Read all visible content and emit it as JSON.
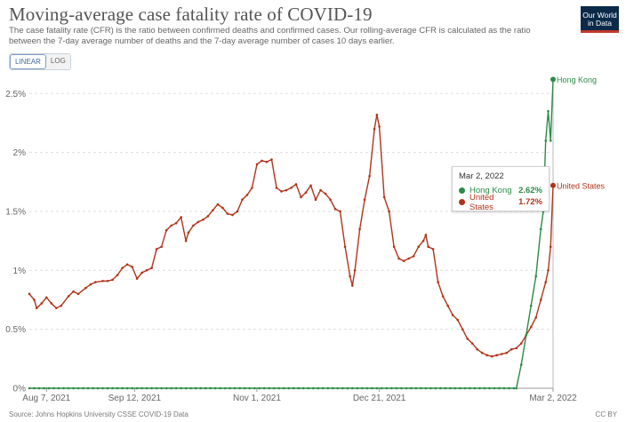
{
  "header": {
    "title": "Moving-average case fatality rate of COVID-19",
    "subtitle": "The case fatality rate (CFR) is the ratio between confirmed deaths and confirmed cases. Our rolling-average CFR is calculated as the ratio between the 7-day average number of deaths and the 7-day average number of cases 10 days earlier.",
    "logo_line1": "Our World",
    "logo_line2": "in Data"
  },
  "controls": {
    "linear_label": "LINEAR",
    "log_label": "LOG",
    "selected": "linear"
  },
  "footer": {
    "source": "Source: Johns Hopkins University CSSE COVID-19 Data",
    "license": "CC BY"
  },
  "tooltip": {
    "date": "Mar 2, 2022",
    "rows": [
      {
        "name": "Hong Kong",
        "value": "2.62%",
        "color": "#2c8b47"
      },
      {
        "name": "United States",
        "value": "1.72%",
        "color": "#b0341a"
      }
    ]
  },
  "chart_data": {
    "type": "line",
    "title": "Moving-average case fatality rate of COVID-19",
    "x_start": "2021-07-31",
    "x_end": "2022-03-02",
    "x_ticks": [
      {
        "date": "2021-08-07",
        "label": "Aug 7, 2021"
      },
      {
        "date": "2021-09-12",
        "label": "Sep 12, 2021"
      },
      {
        "date": "2021-11-01",
        "label": "Nov 1, 2021"
      },
      {
        "date": "2021-12-21",
        "label": "Dec 21, 2021"
      },
      {
        "date": "2022-03-02",
        "label": "Mar 2, 2022"
      }
    ],
    "y_ticks": [
      {
        "value": 0,
        "label": "0%"
      },
      {
        "value": 0.5,
        "label": "0.5%"
      },
      {
        "value": 1,
        "label": "1%"
      },
      {
        "value": 1.5,
        "label": "1.5%"
      },
      {
        "value": 2,
        "label": "2%"
      },
      {
        "value": 2.5,
        "label": "2.5%"
      }
    ],
    "ylim": [
      0,
      2.6
    ],
    "y_unit": "%",
    "grid": true,
    "series": [
      {
        "name": "United States",
        "color": "#b0341a",
        "label_value": "United States",
        "points": [
          [
            "2021-07-31",
            0.8
          ],
          [
            "2021-08-02",
            0.75
          ],
          [
            "2021-08-03",
            0.68
          ],
          [
            "2021-08-05",
            0.72
          ],
          [
            "2021-08-07",
            0.77
          ],
          [
            "2021-08-09",
            0.72
          ],
          [
            "2021-08-11",
            0.68
          ],
          [
            "2021-08-13",
            0.7
          ],
          [
            "2021-08-16",
            0.78
          ],
          [
            "2021-08-18",
            0.82
          ],
          [
            "2021-08-20",
            0.8
          ],
          [
            "2021-08-23",
            0.85
          ],
          [
            "2021-08-25",
            0.88
          ],
          [
            "2021-08-27",
            0.9
          ],
          [
            "2021-08-30",
            0.91
          ],
          [
            "2021-09-01",
            0.91
          ],
          [
            "2021-09-03",
            0.92
          ],
          [
            "2021-09-05",
            0.96
          ],
          [
            "2021-09-07",
            1.02
          ],
          [
            "2021-09-09",
            1.05
          ],
          [
            "2021-09-11",
            1.03
          ],
          [
            "2021-09-13",
            0.93
          ],
          [
            "2021-09-15",
            0.98
          ],
          [
            "2021-09-17",
            1.0
          ],
          [
            "2021-09-19",
            1.02
          ],
          [
            "2021-09-21",
            1.18
          ],
          [
            "2021-09-23",
            1.2
          ],
          [
            "2021-09-25",
            1.34
          ],
          [
            "2021-09-27",
            1.38
          ],
          [
            "2021-09-29",
            1.4
          ],
          [
            "2021-10-01",
            1.45
          ],
          [
            "2021-10-03",
            1.25
          ],
          [
            "2021-10-04",
            1.32
          ],
          [
            "2021-10-06",
            1.38
          ],
          [
            "2021-10-08",
            1.41
          ],
          [
            "2021-10-10",
            1.43
          ],
          [
            "2021-10-12",
            1.46
          ],
          [
            "2021-10-14",
            1.51
          ],
          [
            "2021-10-16",
            1.56
          ],
          [
            "2021-10-18",
            1.53
          ],
          [
            "2021-10-20",
            1.48
          ],
          [
            "2021-10-22",
            1.47
          ],
          [
            "2021-10-24",
            1.5
          ],
          [
            "2021-10-26",
            1.6
          ],
          [
            "2021-10-28",
            1.64
          ],
          [
            "2021-10-30",
            1.7
          ],
          [
            "2021-11-01",
            1.9
          ],
          [
            "2021-11-03",
            1.93
          ],
          [
            "2021-11-05",
            1.92
          ],
          [
            "2021-11-07",
            1.94
          ],
          [
            "2021-11-09",
            1.7
          ],
          [
            "2021-11-11",
            1.67
          ],
          [
            "2021-11-13",
            1.68
          ],
          [
            "2021-11-15",
            1.7
          ],
          [
            "2021-11-17",
            1.73
          ],
          [
            "2021-11-19",
            1.62
          ],
          [
            "2021-11-21",
            1.66
          ],
          [
            "2021-11-23",
            1.72
          ],
          [
            "2021-11-25",
            1.6
          ],
          [
            "2021-11-27",
            1.68
          ],
          [
            "2021-11-29",
            1.65
          ],
          [
            "2021-12-01",
            1.6
          ],
          [
            "2021-12-03",
            1.52
          ],
          [
            "2021-12-05",
            1.5
          ],
          [
            "2021-12-07",
            1.2
          ],
          [
            "2021-12-09",
            0.95
          ],
          [
            "2021-12-10",
            0.87
          ],
          [
            "2021-12-11",
            1.0
          ],
          [
            "2021-12-13",
            1.35
          ],
          [
            "2021-12-15",
            1.6
          ],
          [
            "2021-12-17",
            1.8
          ],
          [
            "2021-12-19",
            2.2
          ],
          [
            "2021-12-20",
            2.32
          ],
          [
            "2021-12-21",
            2.22
          ],
          [
            "2021-12-23",
            1.62
          ],
          [
            "2021-12-25",
            1.5
          ],
          [
            "2021-12-27",
            1.2
          ],
          [
            "2021-12-29",
            1.1
          ],
          [
            "2021-12-31",
            1.08
          ],
          [
            "2022-01-02",
            1.1
          ],
          [
            "2022-01-04",
            1.12
          ],
          [
            "2022-01-06",
            1.2
          ],
          [
            "2022-01-08",
            1.25
          ],
          [
            "2022-01-09",
            1.3
          ],
          [
            "2022-01-10",
            1.2
          ],
          [
            "2022-01-12",
            1.18
          ],
          [
            "2022-01-14",
            0.9
          ],
          [
            "2022-01-16",
            0.78
          ],
          [
            "2022-01-18",
            0.7
          ],
          [
            "2022-01-20",
            0.62
          ],
          [
            "2022-01-22",
            0.58
          ],
          [
            "2022-01-24",
            0.5
          ],
          [
            "2022-01-26",
            0.42
          ],
          [
            "2022-01-28",
            0.38
          ],
          [
            "2022-01-30",
            0.33
          ],
          [
            "2022-02-01",
            0.3
          ],
          [
            "2022-02-03",
            0.28
          ],
          [
            "2022-02-05",
            0.27
          ],
          [
            "2022-02-07",
            0.28
          ],
          [
            "2022-02-09",
            0.29
          ],
          [
            "2022-02-11",
            0.3
          ],
          [
            "2022-02-13",
            0.33
          ],
          [
            "2022-02-15",
            0.34
          ],
          [
            "2022-02-17",
            0.38
          ],
          [
            "2022-02-19",
            0.45
          ],
          [
            "2022-02-21",
            0.52
          ],
          [
            "2022-02-23",
            0.6
          ],
          [
            "2022-02-25",
            0.75
          ],
          [
            "2022-02-27",
            0.9
          ],
          [
            "2022-02-28",
            1.0
          ],
          [
            "2022-03-01",
            1.2
          ],
          [
            "2022-03-02",
            1.72
          ]
        ]
      },
      {
        "name": "Hong Kong",
        "color": "#2c8b47",
        "label_value": "Hong Kong",
        "points": [
          [
            "2021-07-31",
            0.0
          ],
          [
            "2022-02-15",
            0.0
          ],
          [
            "2022-02-17",
            0.2
          ],
          [
            "2022-02-19",
            0.45
          ],
          [
            "2022-02-21",
            0.7
          ],
          [
            "2022-02-23",
            0.95
          ],
          [
            "2022-02-25",
            1.35
          ],
          [
            "2022-02-26",
            1.5
          ],
          [
            "2022-02-27",
            2.1
          ],
          [
            "2022-02-28",
            2.35
          ],
          [
            "2022-03-01",
            2.1
          ],
          [
            "2022-03-02",
            2.62
          ]
        ]
      }
    ],
    "tooltip_date": "2022-03-02"
  }
}
